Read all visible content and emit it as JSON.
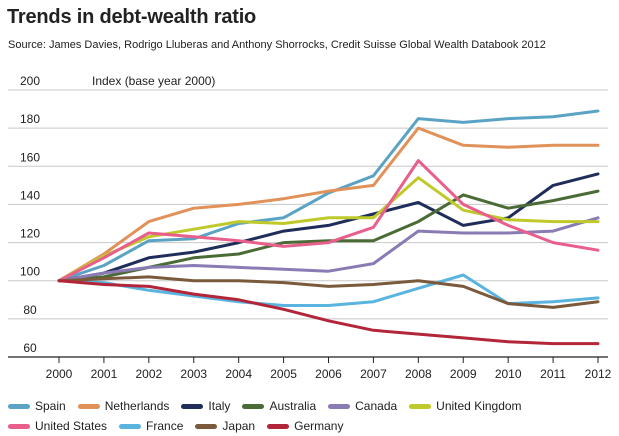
{
  "chart_data": {
    "type": "line",
    "title": "Trends in debt-wealth ratio",
    "subtitle": "Source: James Davies, Rodrigo Lluberas and Anthony Shorrocks, Credit Suisse Global Wealth Databook 2012",
    "ylabel": "Index (base year 2000)",
    "xlabel": "",
    "ylim": [
      60,
      200
    ],
    "yticks": [
      60,
      80,
      100,
      120,
      140,
      160,
      180,
      200
    ],
    "grid": true,
    "legend_position": "bottom",
    "x": [
      "2000",
      "2001",
      "2002",
      "2003",
      "2004",
      "2005",
      "2006",
      "2007",
      "2008",
      "2009",
      "2010",
      "2011",
      "2012"
    ],
    "series": [
      {
        "name": "Spain",
        "color": "#5aa3c4",
        "values": [
          100,
          108,
          121,
          122,
          130,
          133,
          146,
          155,
          185,
          183,
          185,
          186,
          189
        ]
      },
      {
        "name": "Netherlands",
        "color": "#e0925a",
        "values": [
          100,
          114,
          131,
          138,
          140,
          143,
          147,
          150,
          180,
          171,
          170,
          171,
          171
        ]
      },
      {
        "name": "Italy",
        "color": "#1f2d5a",
        "values": [
          100,
          104,
          112,
          115,
          120,
          126,
          129,
          135,
          141,
          129,
          133,
          150,
          156
        ]
      },
      {
        "name": "Australia",
        "color": "#4a6b35",
        "values": [
          100,
          102,
          107,
          112,
          114,
          120,
          121,
          121,
          131,
          145,
          138,
          142,
          147
        ]
      },
      {
        "name": "Canada",
        "color": "#8a7bb5",
        "values": [
          100,
          104,
          107,
          108,
          107,
          106,
          105,
          109,
          126,
          125,
          125,
          126,
          133
        ]
      },
      {
        "name": "United Kingdom",
        "color": "#bfc92a",
        "values": [
          100,
          113,
          123,
          127,
          131,
          130,
          133,
          133,
          154,
          137,
          132,
          131,
          131
        ]
      },
      {
        "name": "United States",
        "color": "#e85f8c",
        "values": [
          100,
          112,
          125,
          123,
          121,
          118,
          120,
          128,
          163,
          140,
          129,
          120,
          116
        ]
      },
      {
        "name": "France",
        "color": "#5ab4e0",
        "values": [
          100,
          99,
          95,
          92,
          89,
          87,
          87,
          89,
          96,
          103,
          88,
          89,
          91
        ]
      },
      {
        "name": "Japan",
        "color": "#7a5a3a",
        "values": [
          100,
          101,
          102,
          100,
          100,
          99,
          97,
          98,
          100,
          97,
          88,
          86,
          89
        ]
      },
      {
        "name": "Germany",
        "color": "#b3263a",
        "values": [
          100,
          98,
          97,
          93,
          90,
          85,
          79,
          74,
          72,
          70,
          68,
          67,
          67
        ]
      }
    ]
  }
}
